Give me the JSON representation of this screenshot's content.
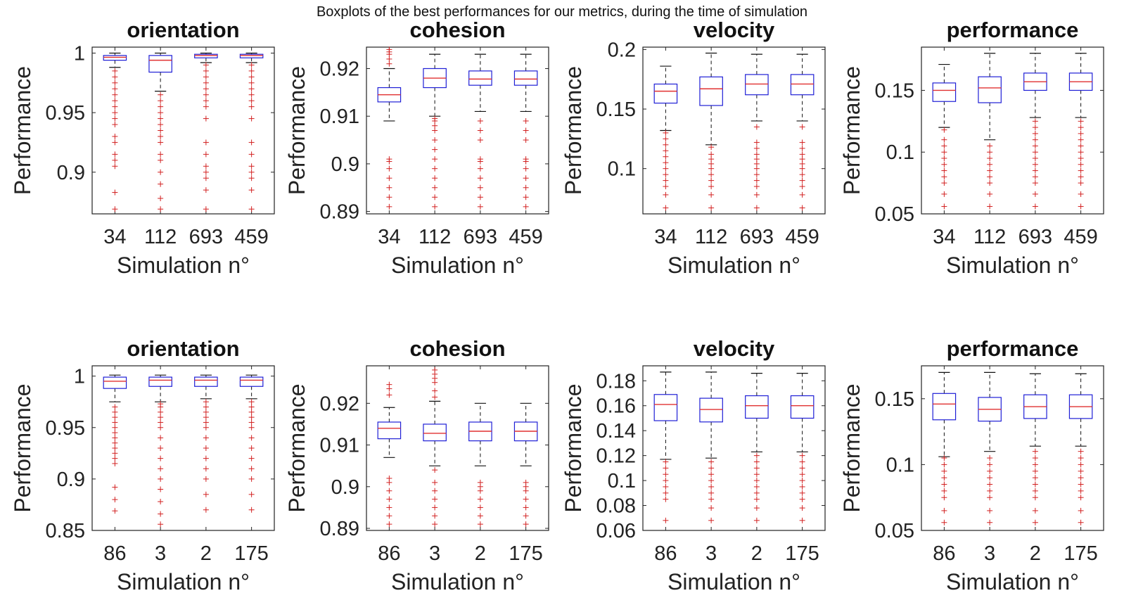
{
  "figure_title": "Boxplots of the best performances for our metrics, during the time of simulation",
  "colors": {
    "box": "#1f1fd6",
    "median": "#e03030",
    "whisker": "#111111",
    "outlier": "#d22020",
    "axis": "#222222"
  },
  "chart_data": [
    {
      "type": "box",
      "title": "orientation",
      "xlabel": "Simulation n°",
      "ylabel": "Performance",
      "categories": [
        "34",
        "112",
        "693",
        "459"
      ],
      "ylim": [
        0.865,
        1.005
      ],
      "yticks": [
        0.9,
        0.95,
        1
      ],
      "ytick_labels": [
        "0.9",
        "0.95",
        "1"
      ],
      "boxes": [
        {
          "whisker_low": 0.988,
          "q1": 0.994,
          "median": 0.9965,
          "q3": 0.998,
          "whisker_high": 1.0,
          "outliers": [
            0.985,
            0.98,
            0.975,
            0.97,
            0.965,
            0.96,
            0.955,
            0.95,
            0.945,
            0.94,
            0.93,
            0.925,
            0.915,
            0.91,
            0.905,
            0.883,
            0.869
          ]
        },
        {
          "whisker_low": 0.968,
          "q1": 0.984,
          "median": 0.994,
          "q3": 0.998,
          "whisker_high": 1.0,
          "outliers": [
            0.965,
            0.96,
            0.955,
            0.95,
            0.945,
            0.94,
            0.935,
            0.93,
            0.925,
            0.915,
            0.91,
            0.9,
            0.89,
            0.878,
            0.869
          ]
        },
        {
          "whisker_low": 0.992,
          "q1": 0.996,
          "median": 0.998,
          "q3": 0.999,
          "whisker_high": 1.0,
          "outliers": [
            0.99,
            0.985,
            0.98,
            0.975,
            0.97,
            0.965,
            0.96,
            0.955,
            0.945,
            0.925,
            0.915,
            0.905,
            0.9,
            0.895,
            0.885,
            0.869
          ]
        },
        {
          "whisker_low": 0.992,
          "q1": 0.996,
          "median": 0.998,
          "q3": 0.999,
          "whisker_high": 1.0,
          "outliers": [
            0.99,
            0.985,
            0.98,
            0.975,
            0.97,
            0.965,
            0.96,
            0.955,
            0.945,
            0.925,
            0.915,
            0.905,
            0.9,
            0.895,
            0.885,
            0.869
          ]
        }
      ]
    },
    {
      "type": "box",
      "title": "cohesion",
      "xlabel": "Simulation n°",
      "ylabel": "Performance",
      "categories": [
        "34",
        "112",
        "693",
        "459"
      ],
      "ylim": [
        0.8895,
        0.9245
      ],
      "yticks": [
        0.89,
        0.9,
        0.91,
        0.92
      ],
      "ytick_labels": [
        "0.89",
        "0.9",
        "0.91",
        "0.92"
      ],
      "boxes": [
        {
          "whisker_low": 0.909,
          "q1": 0.913,
          "median": 0.9145,
          "q3": 0.916,
          "whisker_high": 0.92,
          "outliers": [
            0.924,
            0.9235,
            0.923,
            0.922,
            0.921,
            0.901,
            0.9005,
            0.899,
            0.897,
            0.895,
            0.893,
            0.891
          ]
        },
        {
          "whisker_low": 0.91,
          "q1": 0.916,
          "median": 0.918,
          "q3": 0.92,
          "whisker_high": 0.923,
          "outliers": [
            0.9095,
            0.909,
            0.908,
            0.907,
            0.905,
            0.903,
            0.901,
            0.899,
            0.897,
            0.895,
            0.893,
            0.891
          ]
        },
        {
          "whisker_low": 0.911,
          "q1": 0.9165,
          "median": 0.9178,
          "q3": 0.9195,
          "whisker_high": 0.923,
          "outliers": [
            0.909,
            0.907,
            0.905,
            0.901,
            0.9005,
            0.899,
            0.897,
            0.895,
            0.893,
            0.891
          ]
        },
        {
          "whisker_low": 0.911,
          "q1": 0.9165,
          "median": 0.9178,
          "q3": 0.9195,
          "whisker_high": 0.923,
          "outliers": [
            0.909,
            0.907,
            0.905,
            0.901,
            0.9005,
            0.899,
            0.897,
            0.895,
            0.893,
            0.891
          ]
        }
      ]
    },
    {
      "type": "box",
      "title": "velocity",
      "xlabel": "Simulation n°",
      "ylabel": "Performance",
      "categories": [
        "34",
        "112",
        "693",
        "459"
      ],
      "ylim": [
        0.062,
        0.202
      ],
      "yticks": [
        0.1,
        0.15,
        0.2
      ],
      "ytick_labels": [
        "0.1",
        "0.15",
        "0.2"
      ],
      "boxes": [
        {
          "whisker_low": 0.132,
          "q1": 0.155,
          "median": 0.165,
          "q3": 0.171,
          "whisker_high": 0.186,
          "outliers": [
            0.13,
            0.125,
            0.12,
            0.115,
            0.11,
            0.105,
            0.1,
            0.095,
            0.09,
            0.085,
            0.078,
            0.067
          ]
        },
        {
          "whisker_low": 0.12,
          "q1": 0.153,
          "median": 0.167,
          "q3": 0.177,
          "whisker_high": 0.197,
          "outliers": [
            0.118,
            0.112,
            0.108,
            0.104,
            0.1,
            0.095,
            0.09,
            0.085,
            0.078,
            0.067
          ]
        },
        {
          "whisker_low": 0.14,
          "q1": 0.162,
          "median": 0.171,
          "q3": 0.179,
          "whisker_high": 0.196,
          "outliers": [
            0.135,
            0.122,
            0.117,
            0.112,
            0.108,
            0.104,
            0.1,
            0.095,
            0.09,
            0.085,
            0.078,
            0.067
          ]
        },
        {
          "whisker_low": 0.14,
          "q1": 0.162,
          "median": 0.171,
          "q3": 0.179,
          "whisker_high": 0.196,
          "outliers": [
            0.135,
            0.122,
            0.117,
            0.112,
            0.108,
            0.104,
            0.1,
            0.095,
            0.09,
            0.085,
            0.078,
            0.067
          ]
        }
      ]
    },
    {
      "type": "box",
      "title": "performance",
      "xlabel": "Simulation n°",
      "ylabel": "Performance",
      "categories": [
        "34",
        "112",
        "693",
        "459"
      ],
      "ylim": [
        0.05,
        0.185
      ],
      "yticks": [
        0.05,
        0.1,
        0.15
      ],
      "ytick_labels": [
        "0.05",
        "0.1",
        "0.15"
      ],
      "boxes": [
        {
          "whisker_low": 0.12,
          "q1": 0.141,
          "median": 0.15,
          "q3": 0.156,
          "whisker_high": 0.171,
          "outliers": [
            0.118,
            0.11,
            0.105,
            0.1,
            0.095,
            0.09,
            0.085,
            0.08,
            0.075,
            0.066,
            0.056
          ]
        },
        {
          "whisker_low": 0.11,
          "q1": 0.14,
          "median": 0.152,
          "q3": 0.161,
          "whisker_high": 0.18,
          "outliers": [
            0.105,
            0.1,
            0.095,
            0.09,
            0.085,
            0.08,
            0.075,
            0.066,
            0.056
          ]
        },
        {
          "whisker_low": 0.128,
          "q1": 0.15,
          "median": 0.157,
          "q3": 0.164,
          "whisker_high": 0.18,
          "outliers": [
            0.125,
            0.12,
            0.115,
            0.11,
            0.105,
            0.1,
            0.095,
            0.09,
            0.085,
            0.08,
            0.075,
            0.066,
            0.056
          ]
        },
        {
          "whisker_low": 0.128,
          "q1": 0.15,
          "median": 0.157,
          "q3": 0.164,
          "whisker_high": 0.18,
          "outliers": [
            0.125,
            0.12,
            0.115,
            0.11,
            0.105,
            0.1,
            0.095,
            0.09,
            0.085,
            0.08,
            0.075,
            0.066,
            0.056
          ]
        }
      ]
    },
    {
      "type": "box",
      "title": "orientation",
      "xlabel": "Simulation n°",
      "ylabel": "Performance",
      "categories": [
        "86",
        "3",
        "2",
        "175"
      ],
      "ylim": [
        0.85,
        1.01
      ],
      "yticks": [
        0.85,
        0.9,
        0.95,
        1
      ],
      "ytick_labels": [
        "0.85",
        "0.9",
        "0.95",
        "1"
      ],
      "boxes": [
        {
          "whisker_low": 0.975,
          "q1": 0.988,
          "median": 0.995,
          "q3": 0.999,
          "whisker_high": 1.001,
          "outliers": [
            0.97,
            0.965,
            0.96,
            0.955,
            0.95,
            0.945,
            0.94,
            0.935,
            0.93,
            0.925,
            0.92,
            0.915,
            0.892,
            0.88,
            0.869
          ]
        },
        {
          "whisker_low": 0.975,
          "q1": 0.99,
          "median": 0.996,
          "q3": 0.999,
          "whisker_high": 1.001,
          "outliers": [
            0.973,
            0.97,
            0.965,
            0.96,
            0.955,
            0.95,
            0.94,
            0.93,
            0.92,
            0.91,
            0.9,
            0.89,
            0.878,
            0.866,
            0.856
          ]
        },
        {
          "whisker_low": 0.978,
          "q1": 0.99,
          "median": 0.996,
          "q3": 0.999,
          "whisker_high": 1.001,
          "outliers": [
            0.975,
            0.97,
            0.965,
            0.96,
            0.955,
            0.95,
            0.94,
            0.93,
            0.92,
            0.91,
            0.9,
            0.885,
            0.87
          ]
        },
        {
          "whisker_low": 0.978,
          "q1": 0.99,
          "median": 0.996,
          "q3": 0.999,
          "whisker_high": 1.001,
          "outliers": [
            0.975,
            0.97,
            0.965,
            0.96,
            0.955,
            0.95,
            0.94,
            0.93,
            0.92,
            0.91,
            0.9,
            0.885,
            0.87
          ]
        }
      ]
    },
    {
      "type": "box",
      "title": "cohesion",
      "xlabel": "Simulation n°",
      "ylabel": "Performance",
      "categories": [
        "86",
        "3",
        "2",
        "175"
      ],
      "ylim": [
        0.8895,
        0.929
      ],
      "yticks": [
        0.89,
        0.9,
        0.91,
        0.92
      ],
      "ytick_labels": [
        "0.89",
        "0.9",
        "0.91",
        "0.92"
      ],
      "boxes": [
        {
          "whisker_low": 0.907,
          "q1": 0.9115,
          "median": 0.914,
          "q3": 0.9155,
          "whisker_high": 0.919,
          "outliers": [
            0.9245,
            0.9235,
            0.922,
            0.902,
            0.901,
            0.899,
            0.897,
            0.895,
            0.893,
            0.891
          ]
        },
        {
          "whisker_low": 0.905,
          "q1": 0.911,
          "median": 0.9128,
          "q3": 0.915,
          "whisker_high": 0.9205,
          "outliers": [
            0.928,
            0.927,
            0.926,
            0.925,
            0.923,
            0.9215,
            0.904,
            0.901,
            0.899,
            0.897,
            0.895,
            0.893,
            0.891
          ]
        },
        {
          "whisker_low": 0.905,
          "q1": 0.911,
          "median": 0.9133,
          "q3": 0.9155,
          "whisker_high": 0.92,
          "outliers": [
            0.901,
            0.9,
            0.899,
            0.897,
            0.895,
            0.893,
            0.891
          ]
        },
        {
          "whisker_low": 0.905,
          "q1": 0.911,
          "median": 0.9133,
          "q3": 0.9155,
          "whisker_high": 0.92,
          "outliers": [
            0.901,
            0.9,
            0.899,
            0.897,
            0.895,
            0.893,
            0.891
          ]
        }
      ]
    },
    {
      "type": "box",
      "title": "velocity",
      "xlabel": "Simulation n°",
      "ylabel": "Performance",
      "categories": [
        "86",
        "3",
        "2",
        "175"
      ],
      "ylim": [
        0.06,
        0.192
      ],
      "yticks": [
        0.06,
        0.08,
        0.1,
        0.12,
        0.14,
        0.16,
        0.18
      ],
      "ytick_labels": [
        "0.06",
        "0.08",
        "0.1",
        "0.12",
        "0.14",
        "0.16",
        "0.18"
      ],
      "boxes": [
        {
          "whisker_low": 0.117,
          "q1": 0.148,
          "median": 0.161,
          "q3": 0.169,
          "whisker_high": 0.187,
          "outliers": [
            0.115,
            0.11,
            0.105,
            0.1,
            0.095,
            0.09,
            0.085,
            0.068
          ]
        },
        {
          "whisker_low": 0.118,
          "q1": 0.147,
          "median": 0.157,
          "q3": 0.166,
          "whisker_high": 0.187,
          "outliers": [
            0.115,
            0.11,
            0.105,
            0.1,
            0.095,
            0.09,
            0.085,
            0.078,
            0.068
          ]
        },
        {
          "whisker_low": 0.123,
          "q1": 0.15,
          "median": 0.16,
          "q3": 0.168,
          "whisker_high": 0.186,
          "outliers": [
            0.12,
            0.115,
            0.11,
            0.105,
            0.1,
            0.095,
            0.09,
            0.085,
            0.078,
            0.068
          ]
        },
        {
          "whisker_low": 0.123,
          "q1": 0.15,
          "median": 0.16,
          "q3": 0.168,
          "whisker_high": 0.186,
          "outliers": [
            0.12,
            0.115,
            0.11,
            0.105,
            0.1,
            0.095,
            0.09,
            0.085,
            0.078,
            0.068
          ]
        }
      ]
    },
    {
      "type": "box",
      "title": "performance",
      "xlabel": "Simulation n°",
      "ylabel": "Performance",
      "categories": [
        "86",
        "3",
        "2",
        "175"
      ],
      "ylim": [
        0.05,
        0.175
      ],
      "yticks": [
        0.05,
        0.1,
        0.15
      ],
      "ytick_labels": [
        "0.05",
        "0.1",
        "0.15"
      ],
      "boxes": [
        {
          "whisker_low": 0.106,
          "q1": 0.134,
          "median": 0.146,
          "q3": 0.154,
          "whisker_high": 0.17,
          "outliers": [
            0.105,
            0.1,
            0.095,
            0.09,
            0.085,
            0.08,
            0.075,
            0.065,
            0.056
          ]
        },
        {
          "whisker_low": 0.11,
          "q1": 0.133,
          "median": 0.142,
          "q3": 0.151,
          "whisker_high": 0.17,
          "outliers": [
            0.105,
            0.1,
            0.095,
            0.09,
            0.085,
            0.08,
            0.075,
            0.065,
            0.056
          ]
        },
        {
          "whisker_low": 0.114,
          "q1": 0.135,
          "median": 0.144,
          "q3": 0.153,
          "whisker_high": 0.169,
          "outliers": [
            0.11,
            0.105,
            0.1,
            0.095,
            0.09,
            0.085,
            0.08,
            0.075,
            0.065,
            0.056
          ]
        },
        {
          "whisker_low": 0.114,
          "q1": 0.135,
          "median": 0.144,
          "q3": 0.153,
          "whisker_high": 0.169,
          "outliers": [
            0.11,
            0.105,
            0.1,
            0.095,
            0.09,
            0.085,
            0.08,
            0.075,
            0.065,
            0.056
          ]
        }
      ]
    }
  ]
}
